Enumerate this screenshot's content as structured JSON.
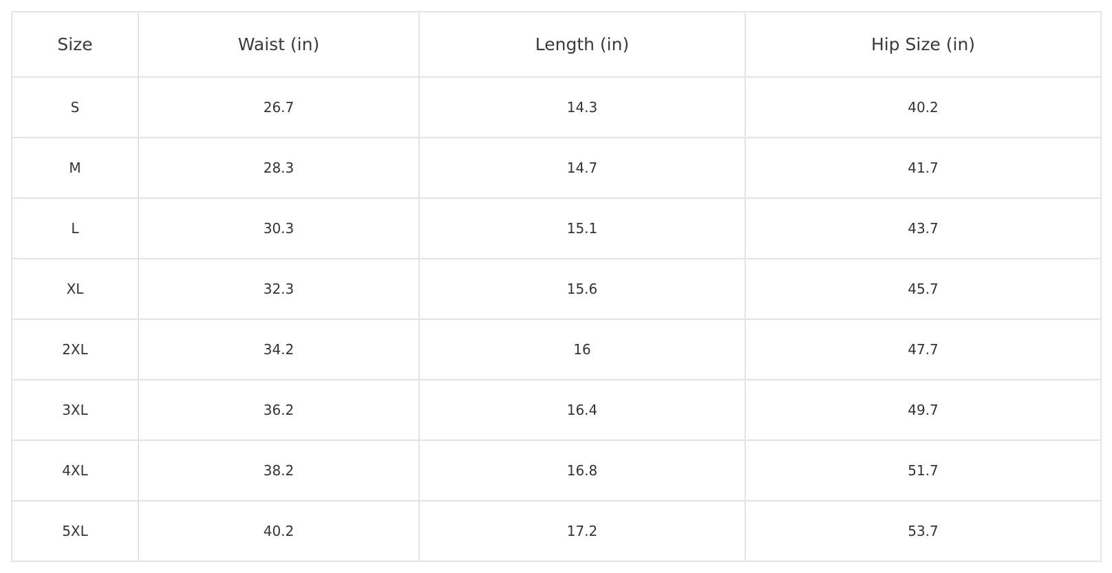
{
  "table": {
    "headers": [
      "Size",
      "Waist (in)",
      "Length (in)",
      "Hip Size (in)"
    ],
    "rows": [
      [
        "S",
        "26.7",
        "14.3",
        "40.2"
      ],
      [
        "M",
        "28.3",
        "14.7",
        "41.7"
      ],
      [
        "L",
        "30.3",
        "15.1",
        "43.7"
      ],
      [
        "XL",
        "32.3",
        "15.6",
        "45.7"
      ],
      [
        "2XL",
        "34.2",
        "16",
        "47.7"
      ],
      [
        "3XL",
        "36.2",
        "16.4",
        "49.7"
      ],
      [
        "4XL",
        "38.2",
        "16.8",
        "51.7"
      ],
      [
        "5XL",
        "40.2",
        "17.2",
        "53.7"
      ]
    ]
  }
}
